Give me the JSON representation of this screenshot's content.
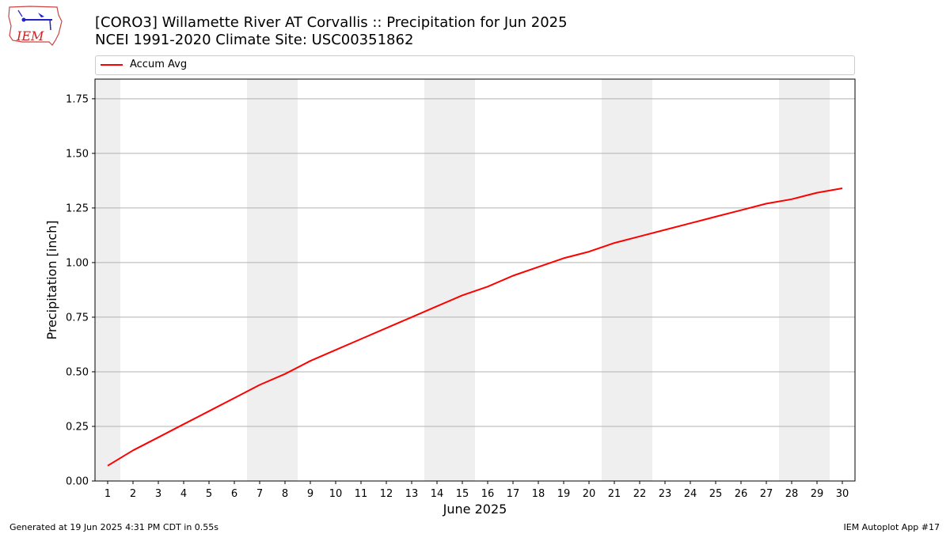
{
  "header": {
    "title_line1": "[CORO3] Willamette River  AT Corvallis :: Precipitation for Jun 2025",
    "title_line2": "NCEI 1991-2020 Climate Site: USC00351862",
    "logo_text": "IEM"
  },
  "footer": {
    "left": "Generated at 19 Jun 2025 4:31 PM CDT in 0.55s",
    "right": "IEM Autoplot App #17"
  },
  "colors": {
    "series": "#ff0000",
    "weekend_band": "#efefef",
    "grid": "#b0b0b0"
  },
  "chart_data": {
    "type": "line",
    "xlabel": "June 2025",
    "ylabel": "Precipitation [inch]",
    "xlim": [
      0.5,
      30.5
    ],
    "ylim": [
      0,
      1.84
    ],
    "x_ticks": [
      1,
      2,
      3,
      4,
      5,
      6,
      7,
      8,
      9,
      10,
      11,
      12,
      13,
      14,
      15,
      16,
      17,
      18,
      19,
      20,
      21,
      22,
      23,
      24,
      25,
      26,
      27,
      28,
      29,
      30
    ],
    "y_ticks": [
      "0.00",
      "0.25",
      "0.50",
      "0.75",
      "1.00",
      "1.25",
      "1.50",
      "1.75"
    ],
    "grid": "horizontal",
    "legend_position": "top",
    "weekend_bands": [
      [
        0.5,
        1.5
      ],
      [
        6.5,
        8.5
      ],
      [
        13.5,
        15.5
      ],
      [
        20.5,
        22.5
      ],
      [
        27.5,
        29.5
      ]
    ],
    "series": [
      {
        "name": "Accum Avg",
        "x": [
          1,
          2,
          3,
          4,
          5,
          6,
          7,
          8,
          9,
          10,
          11,
          12,
          13,
          14,
          15,
          16,
          17,
          18,
          19,
          20,
          21,
          22,
          23,
          24,
          25,
          26,
          27,
          28,
          29,
          30
        ],
        "values": [
          0.07,
          0.14,
          0.2,
          0.26,
          0.32,
          0.38,
          0.44,
          0.49,
          0.55,
          0.6,
          0.65,
          0.7,
          0.75,
          0.8,
          0.85,
          0.89,
          0.94,
          0.98,
          1.02,
          1.05,
          1.09,
          1.12,
          1.15,
          1.18,
          1.21,
          1.24,
          1.27,
          1.29,
          1.32,
          1.34
        ]
      }
    ]
  }
}
